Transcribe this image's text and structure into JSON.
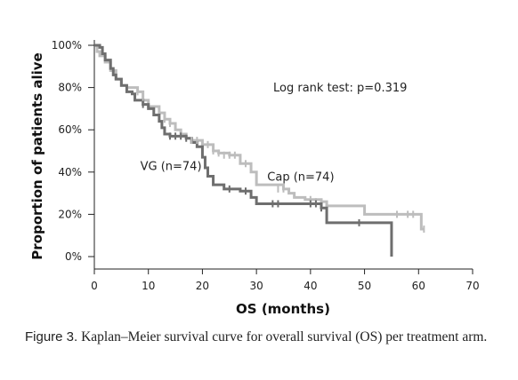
{
  "chart_data": {
    "type": "line",
    "xlabel": "OS (months)",
    "ylabel": "Proportion of patients alive",
    "xlim": [
      0,
      70
    ],
    "ylim": [
      0,
      100
    ],
    "x_ticks": [
      "0",
      "10",
      "20",
      "30",
      "40",
      "50",
      "60",
      "70"
    ],
    "y_ticks": [
      "0%",
      "20%",
      "40%",
      "60%",
      "80%",
      "100%"
    ],
    "annotation": "Log rank test: p=0.319",
    "grid": false,
    "colors": {
      "VG": "#6e6e6e",
      "Cap": "#bdbdbd"
    },
    "series": [
      {
        "key": "VG",
        "name": "VG (n=74)",
        "points": [
          [
            0,
            100
          ],
          [
            1,
            99
          ],
          [
            1.5,
            96
          ],
          [
            2,
            93
          ],
          [
            3,
            89
          ],
          [
            3.5,
            86
          ],
          [
            4,
            84
          ],
          [
            5,
            81
          ],
          [
            6,
            78
          ],
          [
            7,
            77
          ],
          [
            7.5,
            74
          ],
          [
            9,
            72
          ],
          [
            10,
            70
          ],
          [
            11,
            67
          ],
          [
            12,
            64
          ],
          [
            12.5,
            61
          ],
          [
            13,
            58
          ],
          [
            14,
            57
          ],
          [
            17,
            56
          ],
          [
            18,
            54
          ],
          [
            19,
            52
          ],
          [
            20,
            47
          ],
          [
            20.5,
            42
          ],
          [
            21,
            38
          ],
          [
            22,
            34
          ],
          [
            24,
            32
          ],
          [
            27,
            31
          ],
          [
            29,
            28
          ],
          [
            30,
            25
          ],
          [
            35,
            25
          ],
          [
            40,
            25
          ],
          [
            42,
            23
          ],
          [
            43,
            16
          ],
          [
            50,
            16
          ],
          [
            55,
            16
          ],
          [
            55,
            0
          ]
        ],
        "censors": [
          [
            9,
            72
          ],
          [
            14,
            57
          ],
          [
            15,
            57
          ],
          [
            16,
            57
          ],
          [
            17,
            56
          ],
          [
            25,
            32
          ],
          [
            28,
            31
          ],
          [
            33,
            25
          ],
          [
            34,
            25
          ],
          [
            40,
            25
          ],
          [
            41,
            25
          ],
          [
            42,
            23
          ],
          [
            49,
            16
          ]
        ]
      },
      {
        "key": "Cap",
        "name": "Cap (n=74)",
        "points": [
          [
            0,
            100
          ],
          [
            0.5,
            97
          ],
          [
            1,
            95
          ],
          [
            2,
            92
          ],
          [
            3,
            88
          ],
          [
            4,
            84
          ],
          [
            5,
            81
          ],
          [
            6,
            80
          ],
          [
            8,
            78
          ],
          [
            9,
            74
          ],
          [
            10,
            71
          ],
          [
            12,
            68
          ],
          [
            13,
            65
          ],
          [
            14,
            63
          ],
          [
            15,
            60
          ],
          [
            16,
            58
          ],
          [
            17,
            56
          ],
          [
            18,
            55
          ],
          [
            20,
            53
          ],
          [
            22,
            50
          ],
          [
            23,
            49
          ],
          [
            25,
            48
          ],
          [
            27,
            44
          ],
          [
            29,
            40
          ],
          [
            30,
            34
          ],
          [
            35,
            32
          ],
          [
            36,
            30
          ],
          [
            37,
            28
          ],
          [
            39,
            27
          ],
          [
            42,
            26
          ],
          [
            43,
            24
          ],
          [
            49,
            24
          ],
          [
            50,
            20
          ],
          [
            55,
            20
          ],
          [
            60,
            20
          ],
          [
            60.5,
            13
          ],
          [
            61,
            13
          ]
        ],
        "censors": [
          [
            8,
            78
          ],
          [
            9,
            74
          ],
          [
            13,
            65
          ],
          [
            14,
            63
          ],
          [
            16,
            58
          ],
          [
            18,
            55
          ],
          [
            19,
            55
          ],
          [
            21,
            53
          ],
          [
            22,
            50
          ],
          [
            23,
            49
          ],
          [
            24,
            48
          ],
          [
            25,
            48
          ],
          [
            26,
            48
          ],
          [
            28,
            44
          ],
          [
            34,
            32
          ],
          [
            35,
            32
          ],
          [
            40,
            27
          ],
          [
            41,
            26
          ],
          [
            56,
            20
          ],
          [
            58,
            20
          ],
          [
            59,
            20
          ],
          [
            61,
            13
          ]
        ]
      }
    ],
    "series_labels": {
      "VG": {
        "x": 8.5,
        "y": 41
      },
      "Cap": {
        "x": 32,
        "y": 36
      }
    }
  },
  "caption": {
    "label": "Figure 3.",
    "text": "Kaplan–Meier survival curve for overall survival (OS) per treatment arm."
  }
}
